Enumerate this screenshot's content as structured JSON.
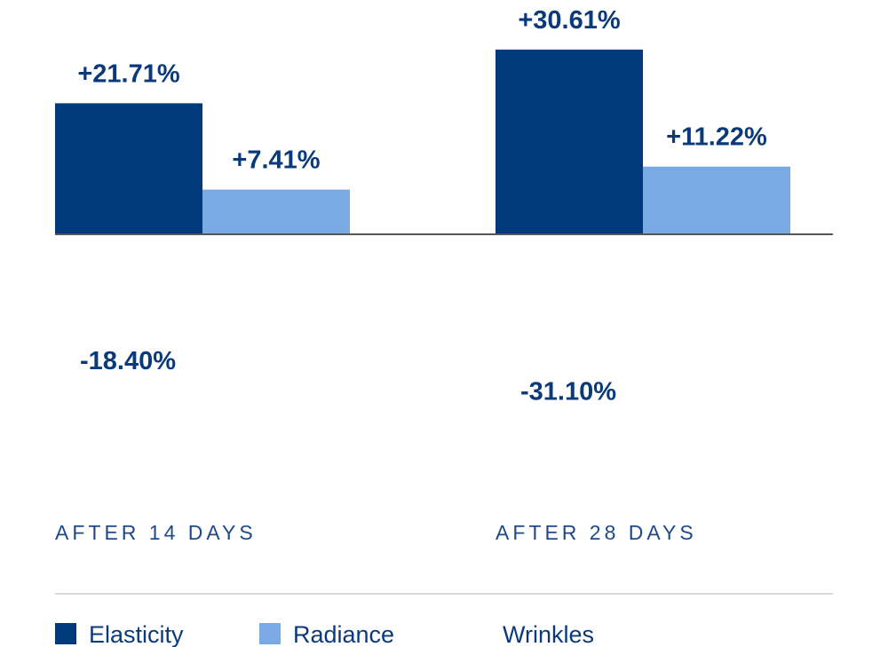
{
  "chart_data": {
    "type": "bar",
    "categories": [
      "AFTER 14 DAYS",
      "AFTER 28 DAYS"
    ],
    "series": [
      {
        "name": "Elasticity",
        "values": [
          21.71,
          30.61
        ],
        "labels": [
          "+21.71%",
          "+30.61%"
        ],
        "color": "#003a7d"
      },
      {
        "name": "Radiance",
        "values": [
          7.41,
          11.22
        ],
        "labels": [
          "+7.41%",
          "+11.22%"
        ],
        "color": "#7aaae3"
      },
      {
        "name": "Wrinkles",
        "values": [
          -18.4,
          -31.1
        ],
        "labels": [
          "-18.40%",
          "-31.10%"
        ],
        "color": "#ffffff"
      }
    ],
    "ylim": [
      -34,
      34
    ],
    "grid": false,
    "legend_position": "bottom-left"
  }
}
